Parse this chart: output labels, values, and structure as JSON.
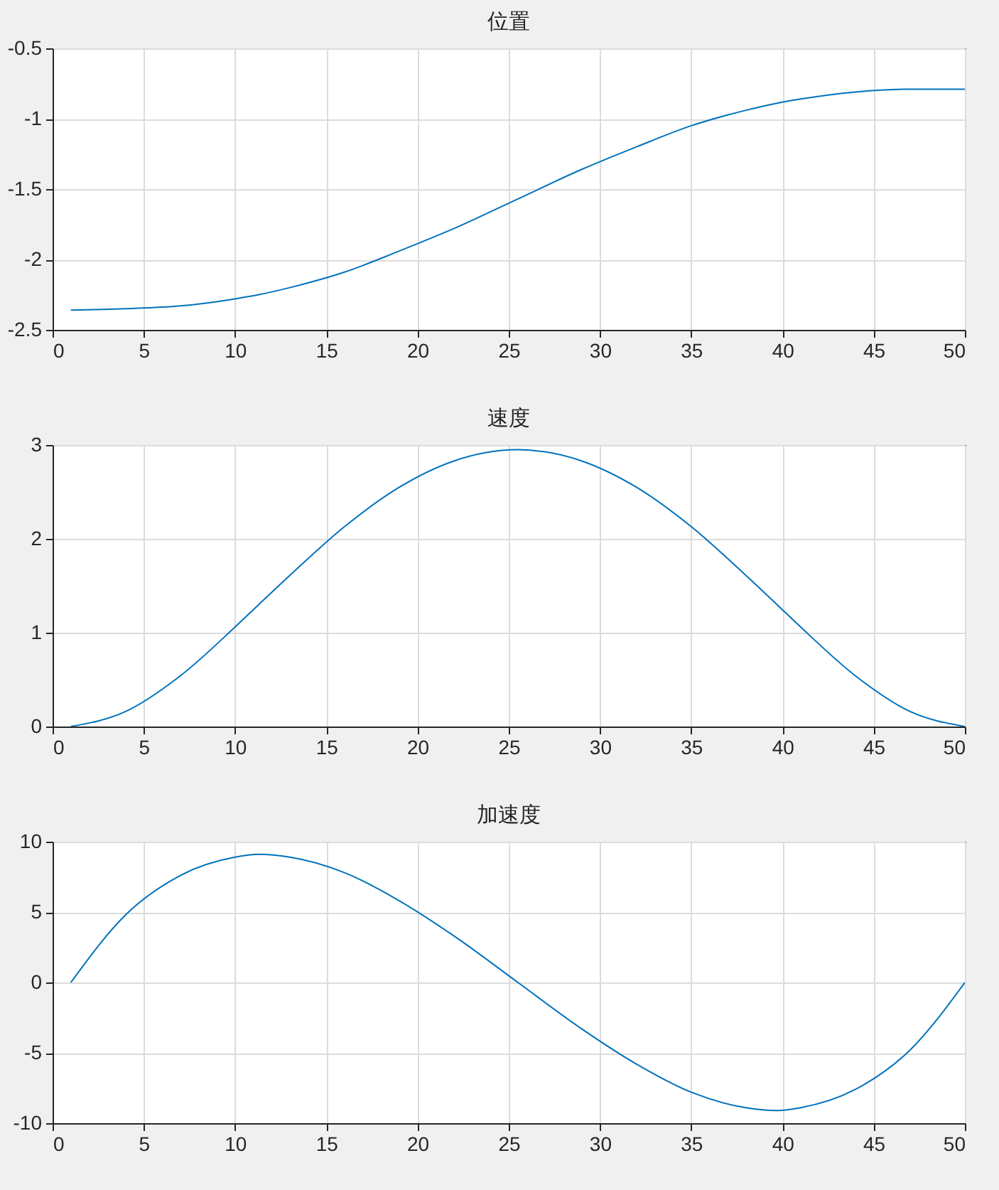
{
  "chart_data": [
    {
      "type": "line",
      "title": "位置",
      "x": [
        1,
        4,
        7,
        10,
        11.3,
        13,
        16,
        19,
        22,
        25.5,
        29,
        32,
        35,
        38,
        39.7,
        41,
        44,
        47,
        50
      ],
      "series": [
        {
          "color": "#0072bd",
          "values": [
            -2.36,
            -2.35,
            -2.33,
            -2.28,
            -2.25,
            -2.2,
            -2.09,
            -1.94,
            -1.78,
            -1.57,
            -1.36,
            -1.2,
            -1.05,
            -0.94,
            -0.89,
            -0.86,
            -0.81,
            -0.79,
            -0.79
          ]
        }
      ],
      "xlim": [
        0,
        50
      ],
      "xticks": [
        0,
        5,
        10,
        15,
        20,
        25,
        30,
        35,
        40,
        45,
        50
      ],
      "ylim": [
        -2.5,
        -0.5
      ],
      "yticks": [
        -2.5,
        -2,
        -1.5,
        -1,
        -0.5
      ],
      "grid": true
    },
    {
      "type": "line",
      "title": "速度",
      "x": [
        1,
        4,
        7,
        10,
        11.3,
        13,
        16,
        19,
        22,
        25.5,
        29,
        32,
        35,
        38,
        39.7,
        41,
        44,
        47,
        50
      ],
      "series": [
        {
          "color": "#0072bd",
          "values": [
            0,
            0.16,
            0.54,
            1.06,
            1.3,
            1.61,
            2.13,
            2.55,
            2.83,
            2.95,
            2.83,
            2.55,
            2.13,
            1.61,
            1.3,
            1.06,
            0.54,
            0.16,
            0
          ]
        }
      ],
      "xlim": [
        0,
        50
      ],
      "xticks": [
        0,
        5,
        10,
        15,
        20,
        25,
        30,
        35,
        40,
        45,
        50
      ],
      "ylim": [
        0,
        3
      ],
      "yticks": [
        0,
        1,
        2,
        3
      ],
      "grid": true
    },
    {
      "type": "line",
      "title": "加速度",
      "x": [
        1,
        4,
        7,
        10,
        11.3,
        13,
        16,
        19,
        22,
        25.5,
        29,
        32,
        35,
        38,
        39.7,
        41,
        44,
        47,
        50
      ],
      "series": [
        {
          "color": "#0072bd",
          "values": [
            0,
            4.8,
            7.6,
            8.9,
            9.1,
            8.9,
            7.8,
            5.8,
            3.3,
            0,
            -3.3,
            -5.8,
            -7.8,
            -8.9,
            -9.1,
            -8.9,
            -7.6,
            -4.8,
            0
          ]
        }
      ],
      "xlim": [
        0,
        50
      ],
      "xticks": [
        0,
        5,
        10,
        15,
        20,
        25,
        30,
        35,
        40,
        45,
        50
      ],
      "ylim": [
        -10,
        10
      ],
      "yticks": [
        -10,
        -5,
        0,
        5,
        10
      ],
      "grid": true
    }
  ]
}
